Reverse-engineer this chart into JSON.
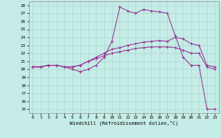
{
  "xlabel": "Windchill (Refroidissement éolien,°C)",
  "bg_color": "#c5ece6",
  "grid_color": "#a8d8d0",
  "line_color": "#993399",
  "xlim": [
    -0.5,
    23.5
  ],
  "ylim": [
    14.5,
    28.5
  ],
  "xticks": [
    0,
    1,
    2,
    3,
    4,
    5,
    6,
    7,
    8,
    9,
    10,
    11,
    12,
    13,
    14,
    15,
    16,
    17,
    18,
    19,
    20,
    21,
    22,
    23
  ],
  "yticks": [
    15,
    16,
    17,
    18,
    19,
    20,
    21,
    22,
    23,
    24,
    25,
    26,
    27,
    28
  ],
  "lines": [
    [
      20.3,
      20.3,
      20.5,
      20.5,
      20.3,
      20.0,
      19.7,
      20.0,
      20.5,
      21.5,
      23.5,
      27.8,
      27.3,
      27.0,
      27.5,
      27.3,
      27.2,
      27.0,
      24.2,
      21.5,
      20.5,
      20.5,
      15.0,
      15.0
    ],
    [
      20.3,
      20.3,
      20.5,
      20.5,
      20.3,
      20.3,
      20.5,
      21.0,
      21.5,
      22.0,
      22.5,
      22.7,
      23.0,
      23.2,
      23.4,
      23.5,
      23.6,
      23.5,
      24.0,
      23.8,
      23.2,
      23.0,
      20.5,
      20.3
    ],
    [
      20.3,
      20.3,
      20.5,
      20.5,
      20.3,
      20.3,
      20.5,
      21.0,
      21.3,
      21.7,
      22.0,
      22.2,
      22.4,
      22.6,
      22.7,
      22.8,
      22.8,
      22.8,
      22.7,
      22.4,
      22.0,
      22.0,
      20.3,
      20.0
    ]
  ]
}
